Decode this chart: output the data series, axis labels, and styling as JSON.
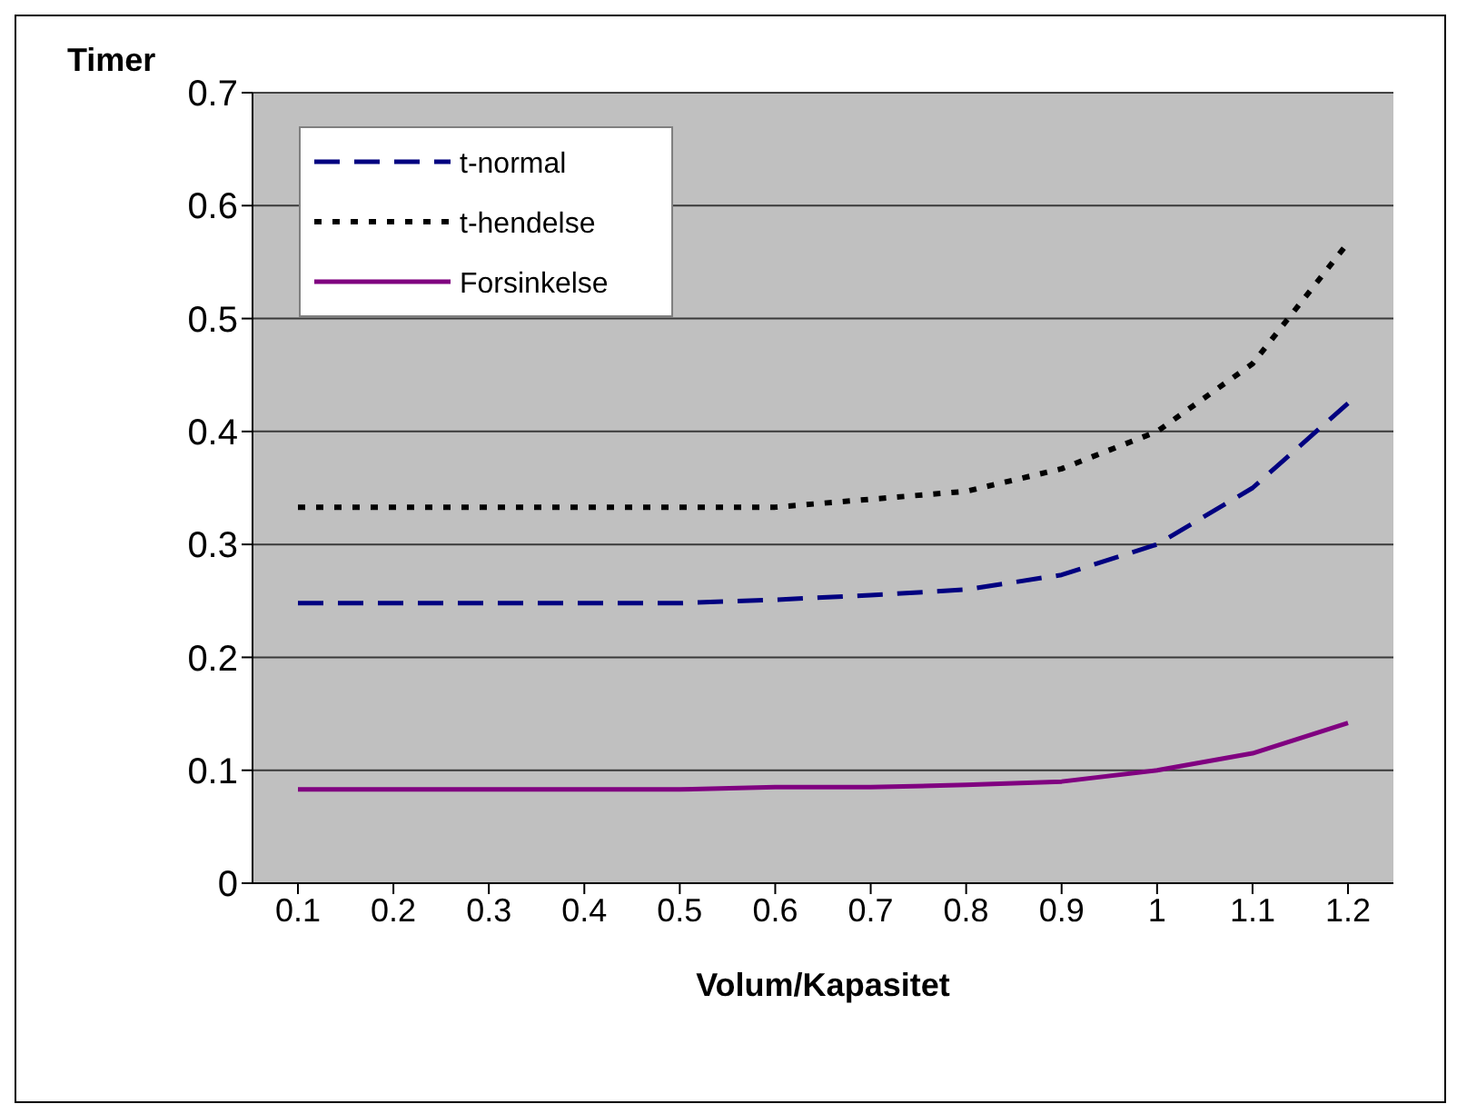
{
  "chart_data": {
    "type": "line",
    "ylabel": "Timer",
    "xlabel": "Volum/Kapasitet",
    "categories": [
      "0.1",
      "0.2",
      "0.3",
      "0.4",
      "0.5",
      "0.6",
      "0.7",
      "0.8",
      "0.9",
      "1",
      "1.1",
      "1.2"
    ],
    "series": [
      {
        "name": "t-normal",
        "color": "#000080",
        "line_style": "dashed",
        "values": [
          0.248,
          0.248,
          0.248,
          0.248,
          0.248,
          0.251,
          0.255,
          0.26,
          0.273,
          0.3,
          0.35,
          0.425
        ]
      },
      {
        "name": "t-hendelse",
        "color": "#000000",
        "line_style": "dotted",
        "values": [
          0.333,
          0.333,
          0.333,
          0.333,
          0.333,
          0.333,
          0.34,
          0.347,
          0.367,
          0.4,
          0.46,
          0.567
        ]
      },
      {
        "name": "Forsinkelse",
        "color": "#800080",
        "line_style": "solid",
        "values": [
          0.083,
          0.083,
          0.083,
          0.083,
          0.083,
          0.085,
          0.085,
          0.087,
          0.09,
          0.1,
          0.115,
          0.142
        ]
      }
    ],
    "ylim": [
      0,
      0.7
    ],
    "yticks": [
      0,
      0.1,
      0.2,
      0.3,
      0.4,
      0.5,
      0.6,
      0.7
    ],
    "grid": "y",
    "legend": "top left",
    "marker": "none"
  }
}
